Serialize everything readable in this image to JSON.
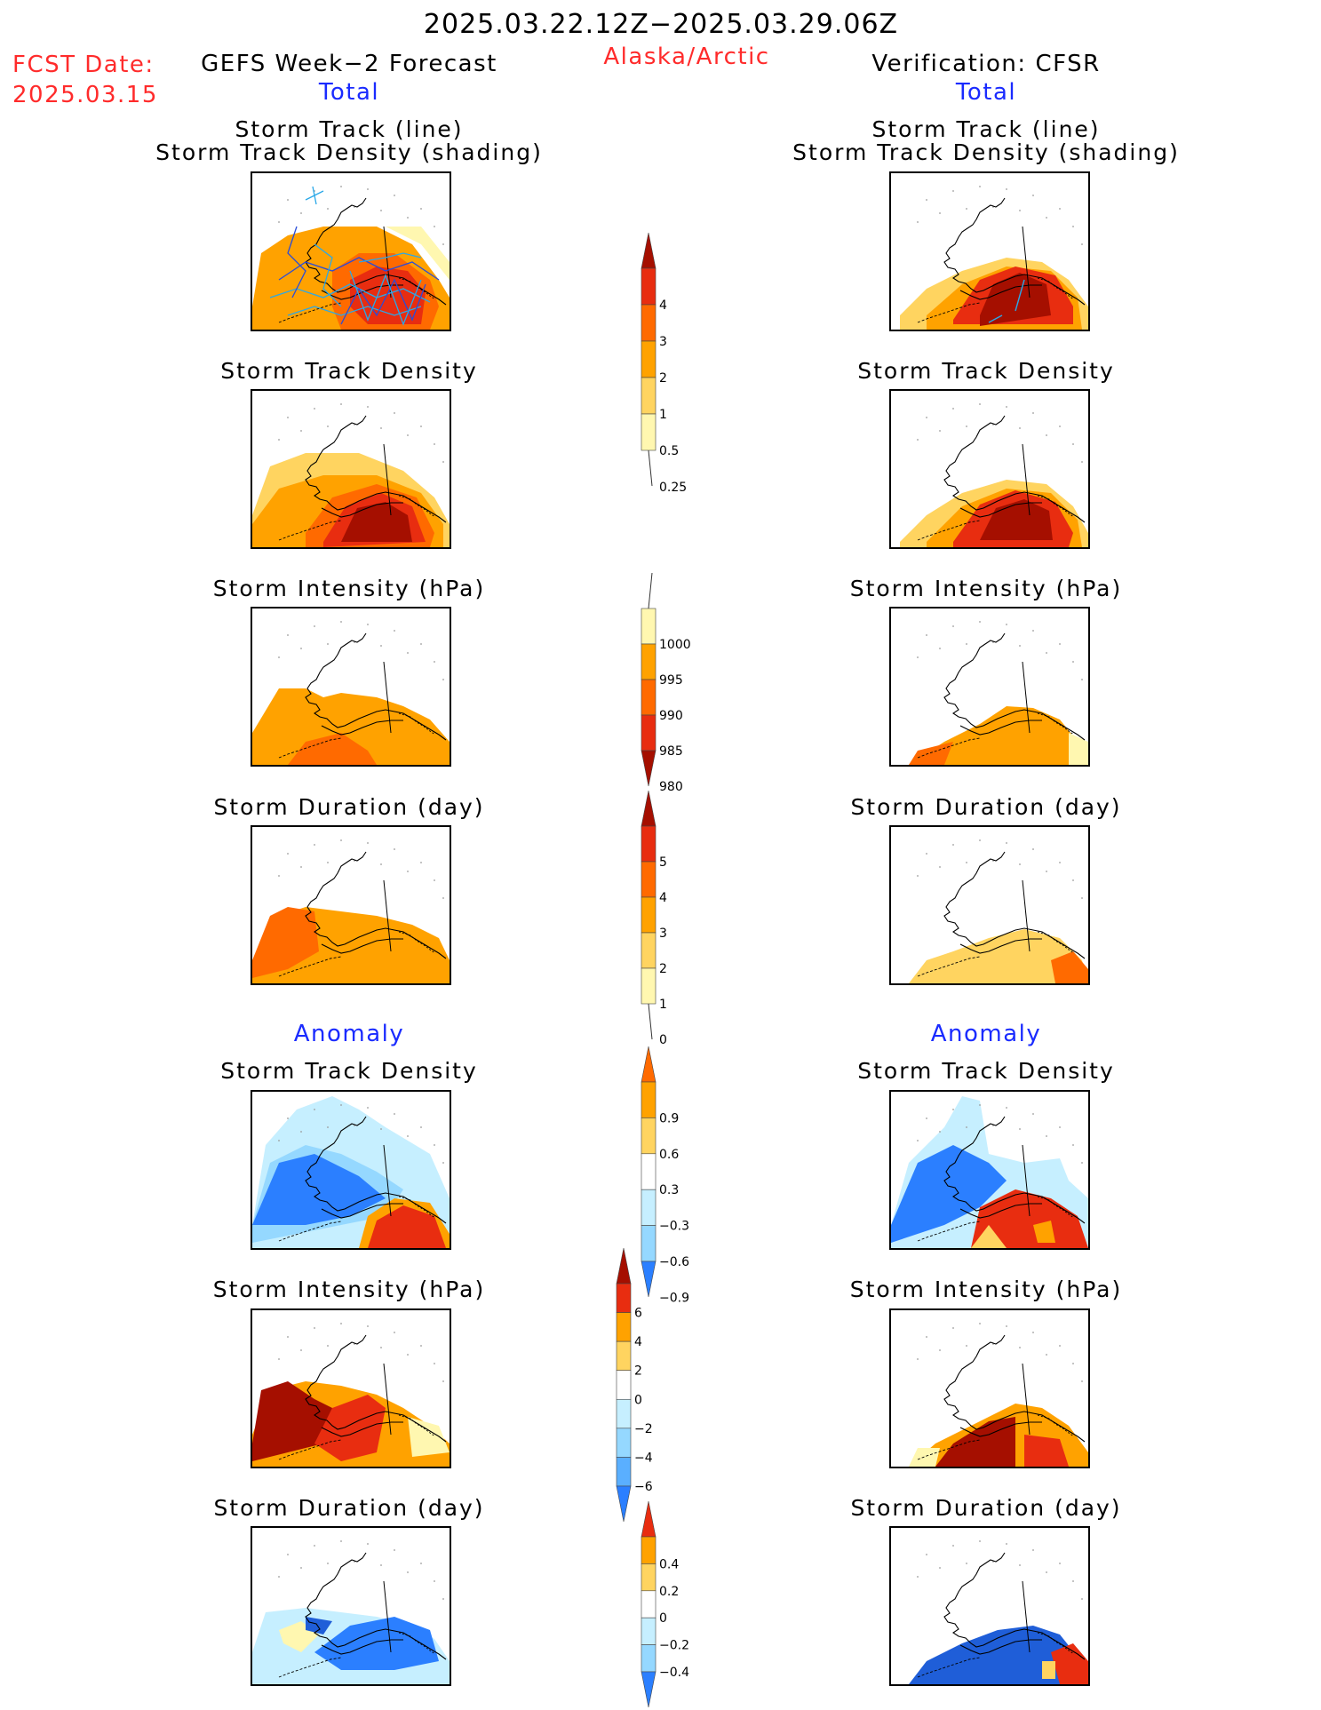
{
  "header": {
    "date_range": "2025.03.22.12Z−2025.03.29.06Z",
    "fcst_label": "FCST Date:",
    "fcst_date": "2025.03.15",
    "left_title": "GEFS Week−2 Forecast",
    "region": "Alaska/Arctic",
    "right_title": "Verification: CFSR",
    "total_label": "Total",
    "anomaly_label": "Anomaly"
  },
  "panel_titles": {
    "track_line": "Storm Track (line)",
    "track_shading": "Storm Track Density (shading)",
    "density": "Storm Track Density",
    "intensity": "Storm Intensity (hPa)",
    "duration": "Storm Duration (day)"
  },
  "colors": {
    "c_pale": "#fff7b0",
    "c_light": "#ffd460",
    "c_orange": "#ffa200",
    "c_dkorange": "#ff6a00",
    "c_red": "#e82d10",
    "c_dkred": "#a50f00",
    "b_pale": "#c6efff",
    "b_light": "#95d8ff",
    "b_mid": "#5aafff",
    "b_blue": "#2b7fff",
    "b_dark": "#1f5ed8",
    "track_line": "#2aa8e8",
    "track_line_dark": "#2a4cd8"
  },
  "colorbars": [
    {
      "name": "density-total",
      "ticks": [
        "4",
        "3",
        "2",
        "1",
        "0.5",
        "0.25"
      ]
    },
    {
      "name": "intensity-total",
      "ticks": [
        "1000",
        "995",
        "990",
        "985",
        "980"
      ]
    },
    {
      "name": "duration-total",
      "ticks": [
        "5",
        "4",
        "3",
        "2",
        "1",
        "0"
      ]
    },
    {
      "name": "density-anomaly",
      "ticks": [
        "0.9",
        "0.6",
        "0.3",
        "−0.3",
        "−0.6",
        "−0.9"
      ]
    },
    {
      "name": "intensity-anomaly",
      "ticks": [
        "6",
        "4",
        "2",
        "0",
        "−2",
        "−4",
        "−6"
      ]
    },
    {
      "name": "duration-anomaly",
      "ticks": [
        "0.4",
        "0.2",
        "0",
        "−0.2",
        "−0.4"
      ]
    }
  ]
}
